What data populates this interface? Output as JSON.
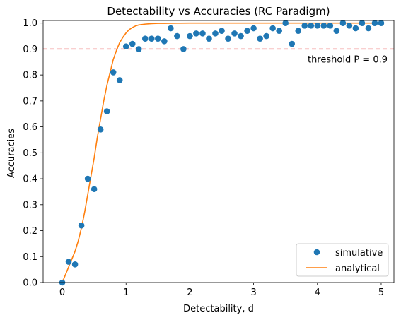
{
  "chart_data": {
    "type": "scatter",
    "title": "Detectability vs Accuracies (RC Paradigm)",
    "xlabel": "Detectability, d",
    "ylabel": "Accuracies",
    "xlim": [
      -0.3,
      5.2
    ],
    "ylim": [
      0,
      1.01
    ],
    "xticks": [
      0,
      1,
      2,
      3,
      4,
      5
    ],
    "yticks": [
      0.0,
      0.1,
      0.2,
      0.3,
      0.4,
      0.5,
      0.6,
      0.7,
      0.8,
      0.9,
      1.0
    ],
    "xtick_labels": [
      "0",
      "1",
      "2",
      "3",
      "4",
      "5"
    ],
    "ytick_labels": [
      "0.0",
      "0.1",
      "0.2",
      "0.3",
      "0.4",
      "0.5",
      "0.6",
      "0.7",
      "0.8",
      "0.9",
      "1.0"
    ],
    "grid": false,
    "legend_position": "bottom-right",
    "series": [
      {
        "name": "simulative",
        "kind": "scatter",
        "color": "#1f77b4",
        "x": [
          0.0,
          0.1,
          0.2,
          0.3,
          0.4,
          0.5,
          0.6,
          0.7,
          0.8,
          0.9,
          1.0,
          1.1,
          1.2,
          1.3,
          1.4,
          1.5,
          1.6,
          1.7,
          1.8,
          1.9,
          2.0,
          2.1,
          2.2,
          2.3,
          2.4,
          2.5,
          2.6,
          2.7,
          2.8,
          2.9,
          3.0,
          3.1,
          3.2,
          3.3,
          3.4,
          3.5,
          3.6,
          3.7,
          3.8,
          3.9,
          4.0,
          4.1,
          4.2,
          4.3,
          4.4,
          4.5,
          4.6,
          4.7,
          4.8,
          4.9,
          5.0
        ],
        "y": [
          0.0,
          0.08,
          0.07,
          0.22,
          0.4,
          0.36,
          0.59,
          0.66,
          0.81,
          0.78,
          0.91,
          0.92,
          0.9,
          0.94,
          0.94,
          0.94,
          0.93,
          0.98,
          0.95,
          0.9,
          0.95,
          0.96,
          0.96,
          0.94,
          0.96,
          0.97,
          0.94,
          0.96,
          0.95,
          0.97,
          0.98,
          0.94,
          0.95,
          0.98,
          0.97,
          1.0,
          0.92,
          0.97,
          0.99,
          0.99,
          0.99,
          0.99,
          0.99,
          0.97,
          1.0,
          0.99,
          0.98,
          1.0,
          0.98,
          1.0,
          1.0
        ]
      },
      {
        "name": "analytical",
        "kind": "line",
        "color": "#ff7f0e",
        "x": [
          0.0,
          0.05,
          0.1,
          0.15,
          0.2,
          0.25,
          0.3,
          0.35,
          0.4,
          0.45,
          0.5,
          0.55,
          0.6,
          0.65,
          0.7,
          0.75,
          0.8,
          0.85,
          0.9,
          0.95,
          1.0,
          1.05,
          1.1,
          1.15,
          1.2,
          1.3,
          1.4,
          1.5,
          1.6,
          1.8,
          2.0,
          2.5,
          3.0,
          3.5,
          4.0,
          4.5,
          5.0
        ],
        "y": [
          0.0,
          0.03,
          0.06,
          0.09,
          0.12,
          0.16,
          0.21,
          0.27,
          0.34,
          0.41,
          0.48,
          0.56,
          0.63,
          0.7,
          0.76,
          0.81,
          0.86,
          0.895,
          0.925,
          0.945,
          0.962,
          0.975,
          0.983,
          0.989,
          0.993,
          0.996,
          0.998,
          0.999,
          0.999,
          0.9995,
          1.0,
          1.0,
          1.0,
          1.0,
          1.0,
          1.0,
          1.0
        ]
      }
    ],
    "threshold": {
      "y": 0.9,
      "label": "threshold P = 0.9",
      "color": "#f08080",
      "text_color": "#ff0000"
    }
  }
}
